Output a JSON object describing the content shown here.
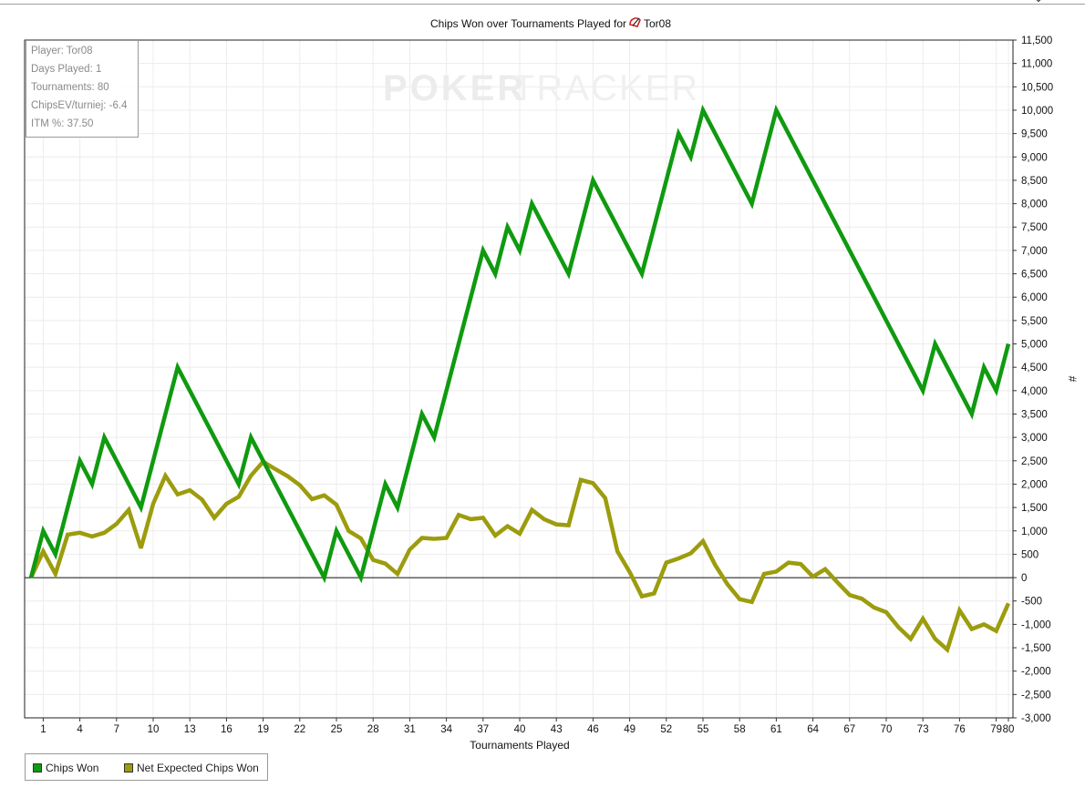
{
  "chart_data": {
    "type": "line",
    "title_prefix": "Chips Won over Tournaments Played for",
    "player_name": "Tor08",
    "xlabel": "Tournaments Played",
    "ylabel": "#",
    "watermark_left": "POKER",
    "watermark_right": "TRACKER",
    "xlim": [
      0,
      80
    ],
    "ylim": [
      -3000,
      11500
    ],
    "y_ticks": [
      -3000,
      -2500,
      -2000,
      -1500,
      -1000,
      -500,
      0,
      500,
      1000,
      1500,
      2000,
      2500,
      3000,
      3500,
      4000,
      4500,
      5000,
      5500,
      6000,
      6500,
      7000,
      7500,
      8000,
      8500,
      9000,
      9500,
      10000,
      10500,
      11000,
      11500
    ],
    "y_tick_labels": [
      "-3,000",
      "-2,500",
      "-2,000",
      "-1,500",
      "-1,000",
      "-500",
      "0",
      "500",
      "1,000",
      "1,500",
      "2,000",
      "2,500",
      "3,000",
      "3,500",
      "4,000",
      "4,500",
      "5,000",
      "5,500",
      "6,000",
      "6,500",
      "7,000",
      "7,500",
      "8,000",
      "8,500",
      "9,000",
      "9,500",
      "10,000",
      "10,500",
      "11,000",
      "11,500"
    ],
    "x_ticks": [
      1,
      4,
      7,
      10,
      13,
      16,
      19,
      22,
      25,
      28,
      31,
      34,
      37,
      40,
      43,
      46,
      49,
      52,
      55,
      58,
      61,
      64,
      67,
      70,
      73,
      76,
      79,
      80
    ],
    "x_tick_labels": [
      "1",
      "4",
      "7",
      "10",
      "13",
      "16",
      "19",
      "22",
      "25",
      "28",
      "31",
      "34",
      "37",
      "40",
      "43",
      "46",
      "49",
      "52",
      "55",
      "58",
      "61",
      "64",
      "67",
      "70",
      "73",
      "76",
      "79",
      "80"
    ],
    "grid": true,
    "legend_position": "bottom-left",
    "series": [
      {
        "name": "Chips Won",
        "color": "#0f9a0f",
        "x": [
          0,
          1,
          2,
          4,
          5,
          6,
          9,
          12,
          17,
          18,
          24,
          25,
          27,
          29,
          30,
          32,
          33,
          37,
          38,
          39,
          40,
          41,
          44,
          46,
          50,
          53,
          54,
          55,
          59,
          61,
          73,
          74,
          77,
          78,
          79,
          80
        ],
        "y": [
          0,
          1000,
          500,
          2500,
          2000,
          3000,
          1500,
          4500,
          2000,
          3000,
          0,
          1000,
          0,
          2000,
          1500,
          3500,
          3000,
          7000,
          6500,
          7500,
          7000,
          8000,
          6500,
          8500,
          6500,
          9500,
          9000,
          10000,
          8000,
          10000,
          4000,
          5000,
          3500,
          4500,
          4000,
          5000
        ]
      },
      {
        "name": "Net Expected Chips Won",
        "color": "#9c9c0e",
        "x": [
          0,
          1,
          2,
          3,
          4,
          5,
          6,
          7,
          8,
          9,
          10,
          11,
          12,
          13,
          14,
          15,
          16,
          17,
          18,
          19,
          20,
          21,
          22,
          23,
          24,
          25,
          26,
          27,
          28,
          29,
          30,
          31,
          32,
          33,
          34,
          35,
          36,
          37,
          38,
          39,
          40,
          41,
          42,
          43,
          44,
          45,
          46,
          47,
          48,
          49,
          50,
          51,
          52,
          53,
          54,
          55,
          56,
          57,
          58,
          59,
          60,
          61,
          62,
          63,
          64,
          65,
          66,
          67,
          68,
          69,
          70,
          71,
          72,
          73,
          74,
          75,
          76,
          77,
          78,
          79,
          80
        ],
        "y": [
          0,
          560,
          80,
          920,
          960,
          880,
          960,
          1150,
          1450,
          630,
          1580,
          2180,
          1780,
          1870,
          1670,
          1280,
          1580,
          1730,
          2180,
          2480,
          2320,
          2170,
          1980,
          1680,
          1760,
          1560,
          1000,
          840,
          380,
          300,
          80,
          600,
          850,
          830,
          850,
          1340,
          1250,
          1280,
          900,
          1100,
          940,
          1450,
          1250,
          1140,
          1120,
          2090,
          2020,
          1700,
          560,
          120,
          -400,
          -340,
          320,
          410,
          520,
          780,
          270,
          -140,
          -460,
          -520,
          80,
          130,
          320,
          290,
          20,
          180,
          -100,
          -370,
          -450,
          -640,
          -740,
          -1060,
          -1310,
          -880,
          -1310,
          -1540,
          -700,
          -1100,
          -1000,
          -1140,
          -550
        ]
      }
    ]
  },
  "info_box": {
    "player": "Player: Tor08",
    "days_played": "Days Played: 1",
    "tournaments": "Tournaments: 80",
    "chipsev": "ChipsEV/turniej: -6.4",
    "itm": "ITM %: 37.50"
  },
  "legend": {
    "chips_won": "Chips Won",
    "net_expected": "Net Expected Chips Won"
  },
  "colors": {
    "chips_won": "#0f9a0f",
    "net_expected": "#9c9c0e",
    "player_icon": "#d42020"
  },
  "icons": {
    "player_icon": "poker-site-icon"
  }
}
